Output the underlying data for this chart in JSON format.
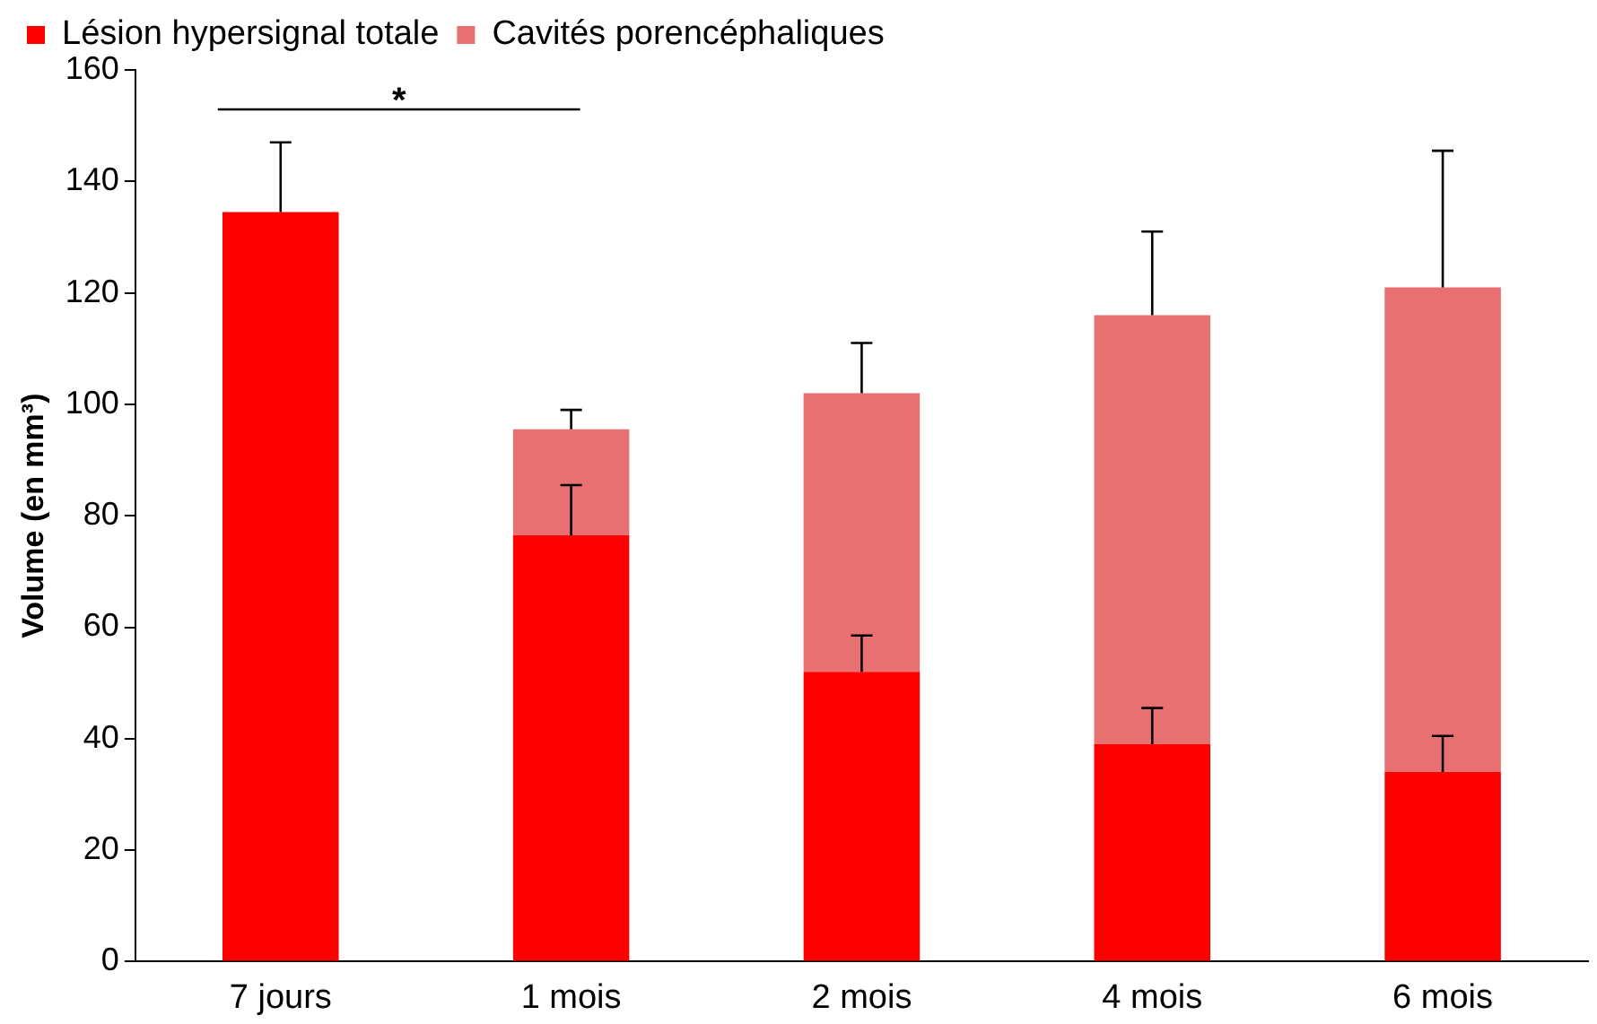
{
  "chart_data": {
    "type": "bar",
    "stacked": true,
    "ylabel": "Volume (en mm³)",
    "categories": [
      "7 jours",
      "1 mois",
      "2 mois",
      "4 mois",
      "6 mois"
    ],
    "series": [
      {
        "name": "Lésion hypersignal totale",
        "color": "#ff0000",
        "values": [
          134.5,
          76.5,
          52,
          39,
          34
        ],
        "errors": [
          [
            134.5,
            147
          ],
          [
            76.5,
            85.5
          ],
          [
            52,
            58.5
          ],
          [
            39,
            45.5
          ],
          [
            34,
            40.5
          ]
        ]
      },
      {
        "name": "Cavités porencéphaliques",
        "color": "#e87070",
        "values": [
          null,
          19,
          50,
          77,
          87
        ],
        "errors": [
          null,
          [
            95.5,
            99
          ],
          [
            102,
            111
          ],
          [
            116,
            131
          ],
          [
            121,
            145.5
          ]
        ]
      }
    ],
    "ylim": [
      0,
      160
    ],
    "yticks": [
      0,
      20,
      40,
      60,
      80,
      100,
      120,
      140,
      160
    ],
    "grid": false,
    "legend": "top",
    "annotations": [
      "*"
    ]
  }
}
